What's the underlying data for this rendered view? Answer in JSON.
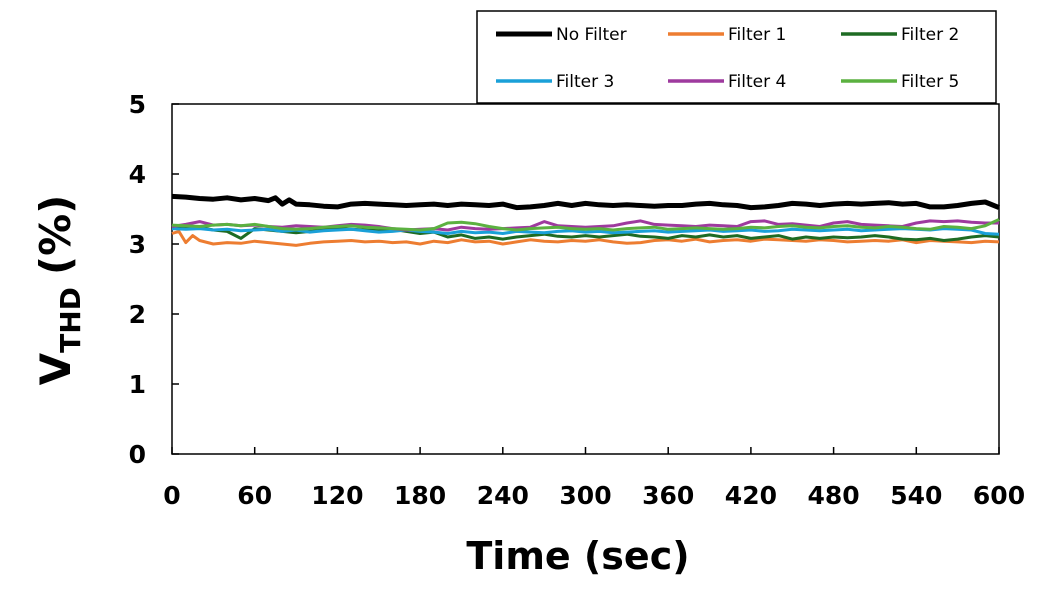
{
  "chart_data": {
    "type": "line",
    "title": "",
    "xlabel": "Time (sec)",
    "ylabel_main": "V",
    "ylabel_sub": "THD",
    "ylabel_suffix": "(%)",
    "xlim": [
      0,
      600
    ],
    "ylim": [
      0,
      5
    ],
    "x_ticks": [
      0,
      60,
      120,
      180,
      240,
      300,
      360,
      420,
      480,
      540,
      600
    ],
    "y_ticks": [
      0,
      1,
      2,
      3,
      4,
      5
    ],
    "grid": false,
    "legend_position": "top-right",
    "series": [
      {
        "name": "No Filter",
        "color": "#000000",
        "width": 5,
        "x": [
          0,
          10,
          20,
          30,
          40,
          50,
          60,
          70,
          75,
          80,
          85,
          90,
          100,
          110,
          120,
          130,
          140,
          150,
          160,
          170,
          180,
          190,
          200,
          210,
          220,
          230,
          240,
          250,
          260,
          270,
          280,
          290,
          300,
          310,
          320,
          330,
          340,
          350,
          360,
          370,
          380,
          390,
          400,
          410,
          420,
          430,
          440,
          450,
          460,
          470,
          480,
          490,
          500,
          510,
          520,
          530,
          540,
          550,
          560,
          570,
          580,
          590,
          600
        ],
        "values": [
          3.68,
          3.67,
          3.65,
          3.64,
          3.66,
          3.63,
          3.65,
          3.62,
          3.66,
          3.57,
          3.63,
          3.57,
          3.56,
          3.54,
          3.53,
          3.57,
          3.58,
          3.57,
          3.56,
          3.55,
          3.56,
          3.57,
          3.55,
          3.57,
          3.56,
          3.55,
          3.57,
          3.52,
          3.53,
          3.55,
          3.58,
          3.55,
          3.58,
          3.56,
          3.55,
          3.56,
          3.55,
          3.54,
          3.55,
          3.55,
          3.57,
          3.58,
          3.56,
          3.55,
          3.52,
          3.53,
          3.55,
          3.58,
          3.57,
          3.55,
          3.57,
          3.58,
          3.57,
          3.58,
          3.59,
          3.57,
          3.58,
          3.53,
          3.53,
          3.55,
          3.58,
          3.6,
          3.52
        ]
      },
      {
        "name": "Filter 1",
        "color": "#ED7D31",
        "width": 3,
        "x": [
          0,
          5,
          10,
          15,
          20,
          30,
          40,
          50,
          60,
          70,
          80,
          90,
          100,
          110,
          120,
          130,
          140,
          150,
          160,
          170,
          180,
          190,
          200,
          210,
          220,
          230,
          240,
          250,
          260,
          270,
          280,
          290,
          300,
          310,
          320,
          330,
          340,
          350,
          360,
          370,
          380,
          390,
          400,
          410,
          420,
          430,
          440,
          450,
          460,
          470,
          480,
          490,
          500,
          510,
          520,
          530,
          540,
          550,
          560,
          570,
          580,
          590,
          600
        ],
        "values": [
          3.15,
          3.18,
          3.02,
          3.12,
          3.05,
          3.0,
          3.02,
          3.01,
          3.04,
          3.02,
          3.0,
          2.98,
          3.01,
          3.03,
          3.04,
          3.05,
          3.03,
          3.04,
          3.02,
          3.03,
          3.0,
          3.04,
          3.02,
          3.06,
          3.03,
          3.04,
          3.0,
          3.03,
          3.06,
          3.04,
          3.03,
          3.05,
          3.04,
          3.06,
          3.03,
          3.01,
          3.02,
          3.05,
          3.06,
          3.04,
          3.07,
          3.03,
          3.05,
          3.06,
          3.04,
          3.07,
          3.06,
          3.05,
          3.04,
          3.06,
          3.05,
          3.03,
          3.04,
          3.05,
          3.04,
          3.06,
          3.02,
          3.05,
          3.04,
          3.03,
          3.02,
          3.04,
          3.03
        ]
      },
      {
        "name": "Filter 2",
        "color": "#1E6B23",
        "width": 3,
        "x": [
          0,
          10,
          20,
          30,
          40,
          50,
          60,
          70,
          80,
          90,
          100,
          110,
          120,
          130,
          140,
          150,
          160,
          170,
          180,
          190,
          200,
          210,
          220,
          230,
          240,
          250,
          260,
          270,
          280,
          290,
          300,
          310,
          320,
          330,
          340,
          350,
          360,
          370,
          380,
          390,
          400,
          410,
          420,
          430,
          440,
          450,
          460,
          470,
          480,
          490,
          500,
          510,
          520,
          530,
          540,
          550,
          560,
          570,
          580,
          590,
          600
        ],
        "values": [
          3.26,
          3.25,
          3.24,
          3.2,
          3.18,
          3.08,
          3.22,
          3.2,
          3.18,
          3.16,
          3.18,
          3.2,
          3.22,
          3.21,
          3.2,
          3.19,
          3.21,
          3.18,
          3.15,
          3.17,
          3.1,
          3.13,
          3.08,
          3.1,
          3.07,
          3.1,
          3.12,
          3.14,
          3.11,
          3.1,
          3.12,
          3.1,
          3.12,
          3.14,
          3.11,
          3.1,
          3.08,
          3.12,
          3.1,
          3.13,
          3.1,
          3.12,
          3.08,
          3.1,
          3.12,
          3.07,
          3.1,
          3.08,
          3.1,
          3.09,
          3.1,
          3.12,
          3.1,
          3.07,
          3.06,
          3.08,
          3.05,
          3.07,
          3.1,
          3.12,
          3.1
        ]
      },
      {
        "name": "Filter 3",
        "color": "#1AA0D8",
        "width": 3,
        "x": [
          0,
          10,
          20,
          30,
          40,
          50,
          60,
          70,
          80,
          90,
          100,
          110,
          120,
          130,
          140,
          150,
          160,
          170,
          180,
          190,
          200,
          210,
          220,
          230,
          240,
          250,
          260,
          270,
          280,
          290,
          300,
          310,
          320,
          330,
          340,
          350,
          360,
          370,
          380,
          390,
          400,
          410,
          420,
          430,
          440,
          450,
          460,
          470,
          480,
          490,
          500,
          510,
          520,
          530,
          540,
          550,
          560,
          570,
          580,
          590,
          600
        ],
        "values": [
          3.22,
          3.21,
          3.22,
          3.2,
          3.21,
          3.19,
          3.2,
          3.21,
          3.18,
          3.2,
          3.17,
          3.19,
          3.2,
          3.21,
          3.19,
          3.17,
          3.18,
          3.2,
          3.18,
          3.17,
          3.15,
          3.18,
          3.16,
          3.17,
          3.15,
          3.18,
          3.17,
          3.16,
          3.18,
          3.19,
          3.17,
          3.18,
          3.16,
          3.17,
          3.18,
          3.19,
          3.17,
          3.18,
          3.19,
          3.2,
          3.18,
          3.19,
          3.2,
          3.18,
          3.19,
          3.21,
          3.2,
          3.19,
          3.2,
          3.21,
          3.19,
          3.2,
          3.21,
          3.22,
          3.21,
          3.2,
          3.22,
          3.21,
          3.2,
          3.15,
          3.14
        ]
      },
      {
        "name": "Filter 4",
        "color": "#9E3A9E",
        "width": 3,
        "x": [
          0,
          10,
          20,
          30,
          40,
          50,
          60,
          70,
          80,
          90,
          100,
          110,
          120,
          130,
          140,
          150,
          160,
          170,
          180,
          190,
          200,
          210,
          220,
          230,
          240,
          250,
          260,
          270,
          280,
          290,
          300,
          310,
          320,
          330,
          340,
          350,
          360,
          370,
          380,
          390,
          400,
          410,
          420,
          430,
          440,
          450,
          460,
          470,
          480,
          490,
          500,
          510,
          520,
          530,
          540,
          550,
          560,
          570,
          580,
          590,
          600
        ],
        "values": [
          3.25,
          3.28,
          3.32,
          3.27,
          3.28,
          3.26,
          3.27,
          3.25,
          3.24,
          3.26,
          3.25,
          3.24,
          3.26,
          3.28,
          3.27,
          3.25,
          3.22,
          3.2,
          3.21,
          3.22,
          3.2,
          3.24,
          3.22,
          3.21,
          3.22,
          3.23,
          3.24,
          3.32,
          3.26,
          3.25,
          3.24,
          3.25,
          3.26,
          3.3,
          3.33,
          3.28,
          3.27,
          3.26,
          3.25,
          3.27,
          3.26,
          3.25,
          3.32,
          3.33,
          3.28,
          3.29,
          3.27,
          3.25,
          3.3,
          3.32,
          3.28,
          3.27,
          3.26,
          3.25,
          3.3,
          3.33,
          3.32,
          3.33,
          3.31,
          3.3,
          3.3
        ]
      },
      {
        "name": "Filter 5",
        "color": "#5BB140",
        "width": 3,
        "x": [
          0,
          10,
          20,
          30,
          40,
          50,
          60,
          70,
          80,
          90,
          100,
          110,
          120,
          130,
          140,
          150,
          160,
          170,
          180,
          190,
          200,
          210,
          220,
          230,
          240,
          250,
          260,
          270,
          280,
          290,
          300,
          310,
          320,
          330,
          340,
          350,
          360,
          370,
          380,
          390,
          400,
          410,
          420,
          430,
          440,
          450,
          460,
          470,
          480,
          490,
          500,
          510,
          520,
          530,
          540,
          550,
          560,
          570,
          580,
          590,
          600
        ],
        "values": [
          3.27,
          3.26,
          3.25,
          3.27,
          3.28,
          3.26,
          3.28,
          3.25,
          3.22,
          3.21,
          3.22,
          3.24,
          3.25,
          3.26,
          3.24,
          3.23,
          3.22,
          3.21,
          3.2,
          3.22,
          3.3,
          3.31,
          3.29,
          3.25,
          3.22,
          3.2,
          3.22,
          3.23,
          3.24,
          3.22,
          3.21,
          3.22,
          3.2,
          3.22,
          3.23,
          3.24,
          3.21,
          3.22,
          3.23,
          3.22,
          3.21,
          3.22,
          3.24,
          3.23,
          3.25,
          3.26,
          3.24,
          3.23,
          3.25,
          3.26,
          3.24,
          3.23,
          3.25,
          3.24,
          3.22,
          3.21,
          3.25,
          3.24,
          3.22,
          3.26,
          3.35
        ]
      }
    ]
  }
}
